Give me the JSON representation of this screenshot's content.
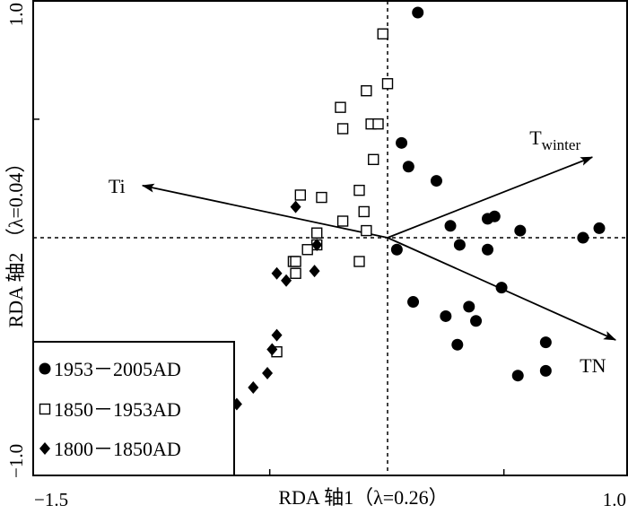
{
  "chart_data": {
    "type": "scatter",
    "title": "",
    "xlabel": "RDA 轴1（λ=0.26）",
    "ylabel": "RDA 轴2 （λ=0.04）",
    "xlim": [
      -1.5,
      1.0
    ],
    "ylim": [
      -1.0,
      1.0
    ],
    "x_ticks": [
      -1.5,
      1.0
    ],
    "x_tick_labels": [
      "−1.5",
      "1.0"
    ],
    "y_ticks": [
      -1.0,
      1.0
    ],
    "y_tick_labels": [
      "−1.0",
      "1.0"
    ],
    "zero_lines": "dashed",
    "grid": false,
    "legend_position": "bottom-left",
    "series": [
      {
        "name": "1953－2005AD",
        "marker": "filled-circle",
        "points": [
          [
            0.13,
            0.95
          ],
          [
            0.06,
            0.4
          ],
          [
            0.09,
            0.3
          ],
          [
            0.21,
            0.24
          ],
          [
            0.27,
            0.05
          ],
          [
            0.31,
            -0.03
          ],
          [
            0.43,
            0.08
          ],
          [
            0.46,
            0.09
          ],
          [
            0.43,
            -0.05
          ],
          [
            0.57,
            0.03
          ],
          [
            0.84,
            0.0
          ],
          [
            0.91,
            0.04
          ],
          [
            0.04,
            -0.05
          ],
          [
            0.49,
            -0.21
          ],
          [
            0.11,
            -0.27
          ],
          [
            0.25,
            -0.33
          ],
          [
            0.35,
            -0.29
          ],
          [
            0.38,
            -0.35
          ],
          [
            0.3,
            -0.45
          ],
          [
            0.68,
            -0.44
          ],
          [
            0.68,
            -0.56
          ],
          [
            0.56,
            -0.58
          ]
        ]
      },
      {
        "name": "1850－1953AD",
        "marker": "open-square",
        "points": [
          [
            -0.02,
            0.86
          ],
          [
            0.0,
            0.65
          ],
          [
            -0.09,
            0.62
          ],
          [
            -0.2,
            0.55
          ],
          [
            -0.19,
            0.46
          ],
          [
            -0.07,
            0.48
          ],
          [
            -0.04,
            0.48
          ],
          [
            -0.06,
            0.33
          ],
          [
            -0.12,
            0.2
          ],
          [
            -0.37,
            0.18
          ],
          [
            -0.28,
            0.17
          ],
          [
            -0.1,
            0.11
          ],
          [
            -0.19,
            0.07
          ],
          [
            -0.09,
            0.03
          ],
          [
            -0.3,
            0.02
          ],
          [
            -0.3,
            -0.03
          ],
          [
            -0.34,
            -0.05
          ],
          [
            -0.12,
            -0.1
          ],
          [
            -0.4,
            -0.1
          ],
          [
            -0.39,
            -0.1
          ],
          [
            -0.39,
            -0.15
          ],
          [
            -0.47,
            -0.48
          ]
        ]
      },
      {
        "name": "1800－1850AD",
        "marker": "filled-diamond",
        "points": [
          [
            -0.39,
            0.13
          ],
          [
            -0.3,
            -0.03
          ],
          [
            -0.31,
            -0.14
          ],
          [
            -0.47,
            -0.15
          ],
          [
            -0.43,
            -0.18
          ],
          [
            -0.47,
            -0.41
          ],
          [
            -0.49,
            -0.47
          ],
          [
            -0.51,
            -0.57
          ],
          [
            -0.57,
            -0.63
          ],
          [
            -0.64,
            -0.7
          ]
        ]
      }
    ],
    "vectors": [
      {
        "label": "Ti",
        "label_sub": "",
        "x": -1.04,
        "y": 0.22
      },
      {
        "label": "T",
        "label_sub": "winter",
        "x": 0.88,
        "y": 0.34
      },
      {
        "label": "TN",
        "label_sub": "",
        "x": 0.98,
        "y": -0.43
      }
    ],
    "legend": [
      {
        "marker": "filled-circle",
        "label": "1953－2005AD"
      },
      {
        "marker": "open-square",
        "label": "1850－1953AD"
      },
      {
        "marker": "filled-diamond",
        "label": "1800－1850AD"
      }
    ]
  }
}
